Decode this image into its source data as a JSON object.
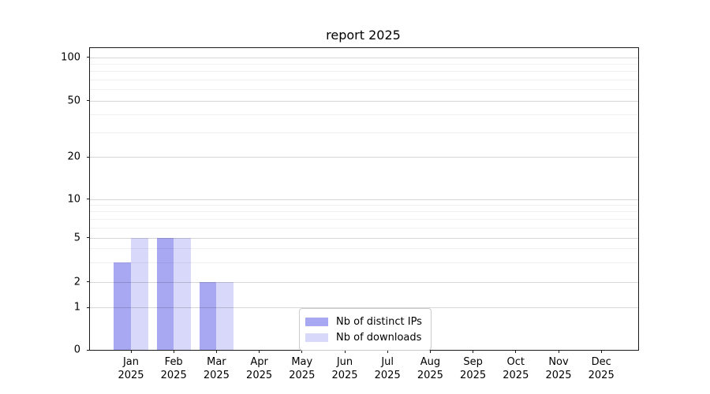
{
  "figure": {
    "title": "report 2025",
    "background": "#ffffff"
  },
  "chart_data": {
    "type": "bar",
    "title": "report 2025",
    "categories": [
      "Jan 2025",
      "Feb 2025",
      "Mar 2025",
      "Apr 2025",
      "May 2025",
      "Jun 2025",
      "Jul 2025",
      "Aug 2025",
      "Sep 2025",
      "Oct 2025",
      "Nov 2025",
      "Dec 2025"
    ],
    "series": [
      {
        "name": "Nb of distinct IPs",
        "color": "#a8a8f2",
        "values": [
          3,
          5,
          2,
          0,
          0,
          0,
          0,
          0,
          0,
          0,
          0,
          0
        ]
      },
      {
        "name": "Nb of downloads",
        "color": "#d8d8fa",
        "values": [
          5,
          5,
          2,
          0,
          0,
          0,
          0,
          0,
          0,
          0,
          0,
          0
        ]
      }
    ],
    "xlabel": "",
    "ylabel": "",
    "yscale": "symlog",
    "yticks": [
      0,
      1,
      2,
      5,
      10,
      20,
      50,
      100
    ],
    "y_minor_gridlines": [
      3,
      4,
      6,
      7,
      8,
      9,
      30,
      40,
      60,
      70,
      80,
      90
    ],
    "ylim": [
      0,
      116
    ],
    "grid": true,
    "grid_on_top_of_bars": true,
    "legend_position": "lower center"
  },
  "colors": {
    "series_ips": "#a8a8f2",
    "series_downloads": "#d8d8fa",
    "axis_line": "#1a1a1a",
    "legend_border": "#cccccc",
    "text": "#000000"
  }
}
